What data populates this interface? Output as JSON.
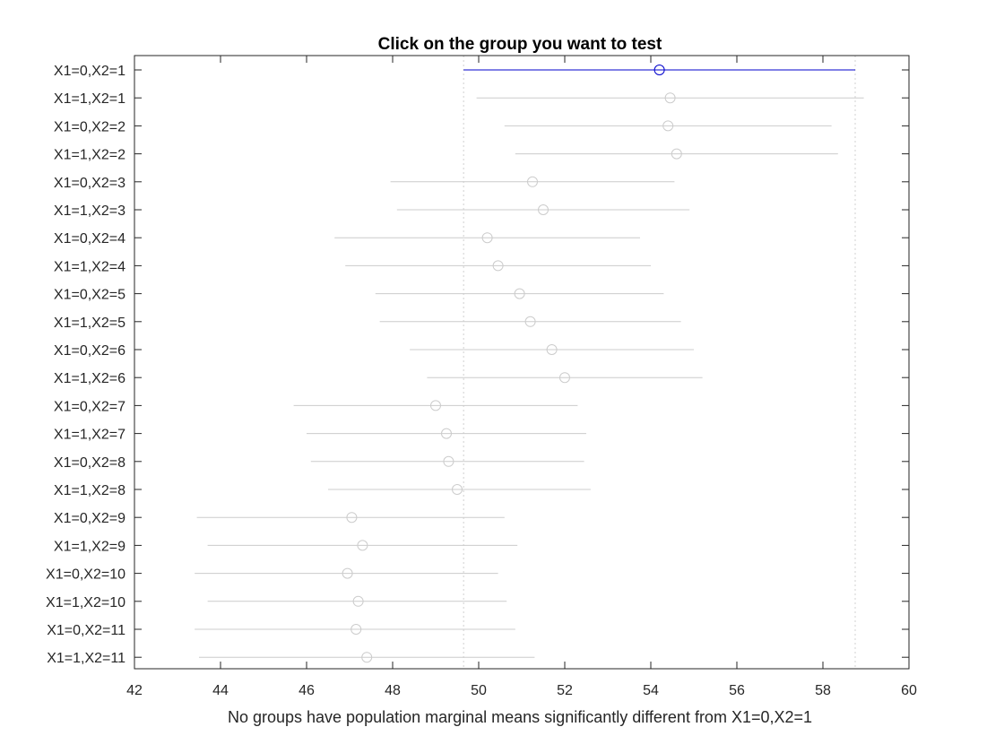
{
  "chart_data": {
    "type": "scatter",
    "title": "Click on the group you want to test",
    "xlabel": "No groups have population marginal means significantly different from X1=0,X2=1",
    "ylabel": "",
    "xlim": [
      42,
      60
    ],
    "xticks": [
      42,
      44,
      46,
      48,
      50,
      52,
      54,
      56,
      58,
      60
    ],
    "grid": false,
    "selected_group": "X1=0,X2=1",
    "reference_lines": [
      49.65,
      58.75
    ],
    "colors": {
      "selected": "#0000cc",
      "inactive": "#cccccc",
      "reference": "#d8d8d8",
      "axis": "#262626"
    },
    "groups": [
      {
        "label": "X1=0,X2=1",
        "mean": 54.2,
        "lower": 49.65,
        "upper": 58.75
      },
      {
        "label": "X1=1,X2=1",
        "mean": 54.45,
        "lower": 49.95,
        "upper": 58.95
      },
      {
        "label": "X1=0,X2=2",
        "mean": 54.4,
        "lower": 50.6,
        "upper": 58.2
      },
      {
        "label": "X1=1,X2=2",
        "mean": 54.6,
        "lower": 50.85,
        "upper": 58.35
      },
      {
        "label": "X1=0,X2=3",
        "mean": 51.25,
        "lower": 47.95,
        "upper": 54.55
      },
      {
        "label": "X1=1,X2=3",
        "mean": 51.5,
        "lower": 48.1,
        "upper": 54.9
      },
      {
        "label": "X1=0,X2=4",
        "mean": 50.2,
        "lower": 46.65,
        "upper": 53.75
      },
      {
        "label": "X1=1,X2=4",
        "mean": 50.45,
        "lower": 46.9,
        "upper": 54.0
      },
      {
        "label": "X1=0,X2=5",
        "mean": 50.95,
        "lower": 47.6,
        "upper": 54.3
      },
      {
        "label": "X1=1,X2=5",
        "mean": 51.2,
        "lower": 47.7,
        "upper": 54.7
      },
      {
        "label": "X1=0,X2=6",
        "mean": 51.7,
        "lower": 48.4,
        "upper": 55.0
      },
      {
        "label": "X1=1,X2=6",
        "mean": 52.0,
        "lower": 48.8,
        "upper": 55.2
      },
      {
        "label": "X1=0,X2=7",
        "mean": 49.0,
        "lower": 45.7,
        "upper": 52.3
      },
      {
        "label": "X1=1,X2=7",
        "mean": 49.25,
        "lower": 46.0,
        "upper": 52.5
      },
      {
        "label": "X1=0,X2=8",
        "mean": 49.3,
        "lower": 46.1,
        "upper": 52.45
      },
      {
        "label": "X1=1,X2=8",
        "mean": 49.5,
        "lower": 46.5,
        "upper": 52.6
      },
      {
        "label": "X1=0,X2=9",
        "mean": 47.05,
        "lower": 43.45,
        "upper": 50.6
      },
      {
        "label": "X1=1,X2=9",
        "mean": 47.3,
        "lower": 43.7,
        "upper": 50.9
      },
      {
        "label": "X1=0,X2=10",
        "mean": 46.95,
        "lower": 43.4,
        "upper": 50.45
      },
      {
        "label": "X1=1,X2=10",
        "mean": 47.2,
        "lower": 43.7,
        "upper": 50.65
      },
      {
        "label": "X1=0,X2=11",
        "mean": 47.15,
        "lower": 43.4,
        "upper": 50.85
      },
      {
        "label": "X1=1,X2=11",
        "mean": 47.4,
        "lower": 43.5,
        "upper": 51.3
      }
    ]
  }
}
